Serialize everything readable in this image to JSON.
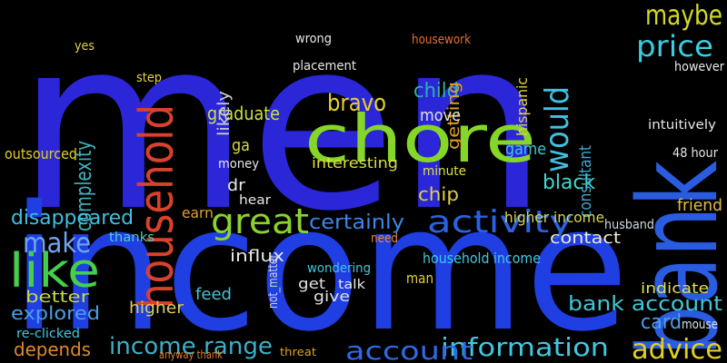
{
  "words": [
    "men",
    "income",
    "bank",
    "chore",
    "household",
    "activity",
    "like",
    "great",
    "make",
    "would",
    "price",
    "maybe",
    "advice",
    "information",
    "account",
    "income range",
    "bravo",
    "child",
    "complexity",
    "chip",
    "black",
    "consultant",
    "certainly",
    "card",
    "bank account",
    "better",
    "explored",
    "depends",
    "disappeared",
    "graduate",
    "getting",
    "household income",
    "contact",
    "husband",
    "higher income",
    "game",
    "interesting",
    "friend",
    "indicate",
    "mouse",
    "influx",
    "feed",
    "higher",
    "give",
    "get",
    "talk",
    "wondering",
    "man",
    "need",
    "move",
    "minute",
    "thanks",
    "outsourced",
    "ga",
    "dr",
    "earn",
    "hear",
    "money",
    "however",
    "intuitively",
    "likely",
    "hispanic",
    "48 hour",
    "step",
    "yes",
    "placement",
    "wrong",
    "housework",
    "anyway thank",
    "threat",
    "re-clicked",
    "not_matter"
  ]
}
